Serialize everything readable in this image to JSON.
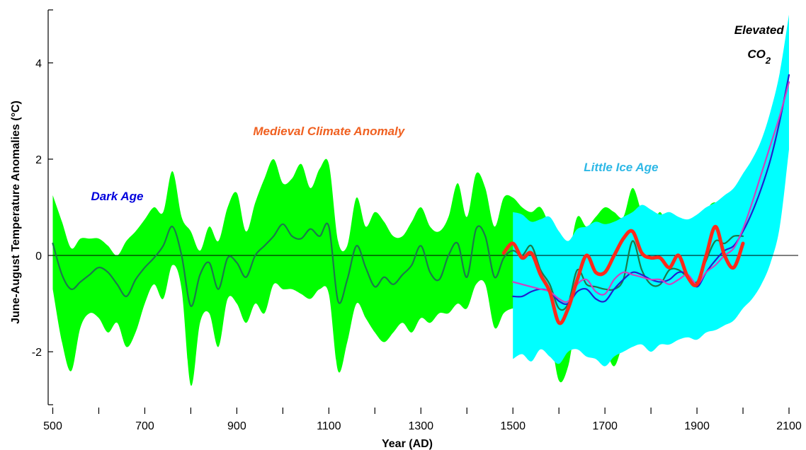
{
  "chart_data": {
    "type": "line",
    "xlabel": "Year (AD)",
    "ylabel": "June-August Temperature Anomalies (°C)",
    "xlim": [
      490,
      2120
    ],
    "ylim": [
      -3.1,
      5.1
    ],
    "x_ticks": [
      500,
      700,
      900,
      1100,
      1300,
      1500,
      1700,
      1900,
      2100
    ],
    "x_minor_ticks": [
      600,
      800,
      1000,
      1200,
      1400,
      1600,
      1800,
      2000
    ],
    "y_ticks": [
      -2,
      0,
      2,
      4
    ],
    "zero_line": true,
    "grid": false,
    "annotations": [
      {
        "text": "Dark Age",
        "x": 640,
        "y": 1.15,
        "color": "#0000dd"
      },
      {
        "text": "Medieval Climate Anomaly",
        "x": 1100,
        "y": 2.5,
        "color": "#f06020"
      },
      {
        "text": "Little Ice Age",
        "x": 1735,
        "y": 1.75,
        "color": "#2eb8e6"
      },
      {
        "text": "Elevated",
        "x": 2035,
        "y": 4.6,
        "color": "#000000"
      },
      {
        "text": "CO",
        "sub": "2",
        "x": 2035,
        "y": 4.1,
        "color": "#000000"
      }
    ],
    "series": [
      {
        "style": "band",
        "color": "#00ff00",
        "x": [
          500,
          520,
          540,
          560,
          580,
          600,
          620,
          640,
          660,
          680,
          700,
          720,
          740,
          760,
          780,
          800,
          820,
          840,
          860,
          880,
          900,
          920,
          940,
          960,
          980,
          1000,
          1020,
          1040,
          1060,
          1080,
          1100,
          1120,
          1140,
          1160,
          1180,
          1200,
          1220,
          1240,
          1260,
          1280,
          1300,
          1320,
          1340,
          1360,
          1380,
          1400,
          1420,
          1440,
          1460,
          1480,
          1500,
          1520,
          1540,
          1560,
          1580,
          1600,
          1620,
          1640,
          1660,
          1680,
          1700,
          1720,
          1740,
          1760,
          1780,
          1800,
          1820,
          1840,
          1860,
          1880,
          1900,
          1920,
          1940,
          1960,
          1980,
          2000
        ],
        "upper": [
          1.25,
          0.7,
          0.15,
          0.35,
          0.35,
          0.35,
          0.2,
          0.0,
          0.3,
          0.5,
          0.75,
          1.0,
          0.9,
          1.75,
          0.8,
          0.5,
          0.1,
          0.6,
          0.3,
          1.0,
          1.3,
          0.5,
          1.1,
          1.6,
          2.0,
          1.5,
          1.6,
          1.9,
          1.4,
          1.8,
          1.9,
          0.3,
          0.2,
          1.2,
          0.6,
          0.9,
          0.7,
          0.4,
          0.4,
          0.7,
          1.0,
          0.6,
          0.5,
          0.8,
          1.5,
          0.8,
          1.7,
          1.4,
          0.6,
          1.2,
          1.2,
          1.0,
          0.9,
          1.0,
          0.6,
          0.1,
          0.0,
          0.8,
          0.6,
          0.8,
          1.0,
          0.9,
          0.8,
          1.4,
          0.9,
          0.6,
          0.9,
          0.5,
          0.7,
          0.2,
          0.2,
          0.9,
          1.1,
          0.8,
          0.9,
          1.1
        ],
        "lower": [
          -0.7,
          -1.8,
          -2.4,
          -1.5,
          -1.2,
          -1.3,
          -1.6,
          -1.4,
          -1.9,
          -1.6,
          -1.0,
          -0.6,
          -0.9,
          -0.2,
          -0.7,
          -2.7,
          -1.4,
          -1.2,
          -1.9,
          -0.9,
          -1.0,
          -1.4,
          -1.0,
          -1.2,
          -0.6,
          -0.7,
          -0.7,
          -0.8,
          -0.9,
          -0.7,
          -0.8,
          -2.4,
          -1.8,
          -1.0,
          -1.3,
          -1.6,
          -1.8,
          -1.6,
          -1.4,
          -1.6,
          -1.3,
          -1.4,
          -1.2,
          -1.2,
          -1.0,
          -1.1,
          -0.6,
          -0.6,
          -1.5,
          -1.2,
          -1.1,
          -1.1,
          -0.9,
          -1.2,
          -1.6,
          -2.6,
          -2.3,
          -1.3,
          -1.2,
          -1.5,
          -1.9,
          -2.3,
          -1.8,
          -1.4,
          -1.7,
          -1.8,
          -1.8,
          -1.3,
          -1.6,
          -1.4,
          -1.3,
          -1.0,
          -0.5,
          -0.4,
          -0.4,
          -0.3
        ]
      },
      {
        "style": "line",
        "color": "#1a7a4a",
        "x": [
          500,
          520,
          540,
          560,
          580,
          600,
          620,
          640,
          660,
          680,
          700,
          720,
          740,
          760,
          780,
          800,
          820,
          840,
          860,
          880,
          900,
          920,
          940,
          960,
          980,
          1000,
          1020,
          1040,
          1060,
          1080,
          1100,
          1120,
          1140,
          1160,
          1180,
          1200,
          1220,
          1240,
          1260,
          1280,
          1300,
          1320,
          1340,
          1360,
          1380,
          1400,
          1420,
          1440,
          1460,
          1480,
          1500,
          1520,
          1540,
          1560,
          1580,
          1600,
          1620,
          1640,
          1660,
          1680,
          1700,
          1720,
          1740,
          1760,
          1780,
          1800,
          1820,
          1840,
          1860,
          1880,
          1900,
          1920,
          1940,
          1960,
          1980,
          2000
        ],
        "values": [
          0.25,
          -0.4,
          -0.7,
          -0.55,
          -0.4,
          -0.25,
          -0.35,
          -0.6,
          -0.85,
          -0.5,
          -0.25,
          -0.05,
          0.2,
          0.6,
          0.0,
          -1.05,
          -0.4,
          -0.15,
          -0.7,
          -0.05,
          -0.15,
          -0.45,
          0.0,
          0.2,
          0.4,
          0.65,
          0.4,
          0.35,
          0.55,
          0.4,
          0.6,
          -0.95,
          -0.5,
          0.2,
          -0.25,
          -0.65,
          -0.45,
          -0.6,
          -0.4,
          -0.2,
          0.2,
          -0.35,
          -0.5,
          0.0,
          0.25,
          -0.45,
          0.55,
          0.4,
          -0.45,
          -0.05,
          0.1,
          0.0,
          0.2,
          -0.3,
          -0.6,
          -1.1,
          -1.0,
          -0.3,
          -0.6,
          -0.65,
          -0.7,
          -0.7,
          -0.5,
          0.3,
          -0.3,
          -0.6,
          -0.6,
          -0.3,
          -0.3,
          -0.45,
          -0.55,
          -0.1,
          0.3,
          0.25,
          0.4,
          0.4
        ]
      },
      {
        "style": "band",
        "color": "#00ffff",
        "x": [
          1500,
          1520,
          1540,
          1560,
          1580,
          1600,
          1620,
          1640,
          1660,
          1680,
          1700,
          1720,
          1740,
          1760,
          1780,
          1800,
          1820,
          1840,
          1860,
          1880,
          1900,
          1920,
          1940,
          1960,
          1980,
          2000,
          2020,
          2040,
          2060,
          2080,
          2100
        ],
        "upper": [
          0.9,
          0.85,
          0.7,
          0.75,
          0.8,
          0.5,
          0.3,
          0.55,
          0.6,
          0.7,
          0.65,
          0.7,
          0.8,
          0.9,
          1.05,
          0.95,
          0.85,
          0.9,
          0.8,
          0.75,
          0.85,
          1.0,
          1.1,
          1.25,
          1.4,
          1.7,
          2.0,
          2.4,
          3.0,
          3.8,
          5.0
        ],
        "lower": [
          -2.15,
          -2.05,
          -2.2,
          -1.95,
          -2.1,
          -2.25,
          -2.0,
          -1.95,
          -2.1,
          -2.15,
          -2.3,
          -2.1,
          -2.0,
          -1.9,
          -1.85,
          -2.0,
          -1.85,
          -1.85,
          -1.75,
          -1.7,
          -1.75,
          -1.6,
          -1.55,
          -1.45,
          -1.35,
          -1.1,
          -0.9,
          -0.6,
          -0.15,
          0.6,
          2.2
        ]
      },
      {
        "style": "line",
        "color": "#2020d0",
        "x": [
          1500,
          1520,
          1540,
          1560,
          1580,
          1600,
          1620,
          1640,
          1660,
          1680,
          1700,
          1720,
          1740,
          1760,
          1780,
          1800,
          1820,
          1840,
          1860,
          1880,
          1900,
          1920,
          1940,
          1960,
          1980,
          2000,
          2020,
          2040,
          2060,
          2080,
          2100
        ],
        "values": [
          -0.85,
          -0.85,
          -0.75,
          -0.7,
          -0.75,
          -0.95,
          -1.0,
          -0.75,
          -0.7,
          -0.9,
          -0.95,
          -0.7,
          -0.5,
          -0.35,
          -0.4,
          -0.5,
          -0.55,
          -0.5,
          -0.35,
          -0.4,
          -0.65,
          -0.35,
          -0.1,
          0.1,
          0.2,
          0.5,
          0.9,
          1.4,
          2.0,
          2.8,
          3.75
        ]
      },
      {
        "style": "line",
        "color": "#d040c0",
        "x": [
          1500,
          1520,
          1540,
          1560,
          1580,
          1600,
          1620,
          1640,
          1660,
          1680,
          1700,
          1720,
          1740,
          1760,
          1780,
          1800,
          1820,
          1840,
          1860,
          1880,
          1900,
          1920,
          1940,
          1960,
          1980,
          2000,
          2020,
          2040,
          2060,
          2080,
          2100
        ],
        "values": [
          -0.55,
          -0.6,
          -0.65,
          -0.7,
          -0.75,
          -0.9,
          -0.95,
          -0.6,
          -0.5,
          -0.75,
          -0.8,
          -0.5,
          -0.35,
          -0.4,
          -0.45,
          -0.5,
          -0.5,
          -0.6,
          -0.5,
          -0.4,
          -0.6,
          -0.35,
          -0.2,
          0.0,
          0.15,
          0.55,
          1.1,
          1.7,
          2.3,
          2.9,
          3.6
        ]
      },
      {
        "style": "thick-line",
        "color": "#ff2a1a",
        "x": [
          1480,
          1500,
          1520,
          1540,
          1560,
          1580,
          1600,
          1620,
          1640,
          1660,
          1680,
          1700,
          1720,
          1740,
          1760,
          1780,
          1800,
          1820,
          1840,
          1860,
          1880,
          1900,
          1920,
          1940,
          1960,
          1980,
          2000
        ],
        "values": [
          0.05,
          0.25,
          -0.05,
          0.05,
          -0.4,
          -0.75,
          -1.4,
          -1.1,
          -0.5,
          0.0,
          -0.35,
          -0.35,
          0.0,
          0.35,
          0.5,
          0.05,
          -0.05,
          -0.05,
          -0.25,
          0.0,
          -0.45,
          -0.6,
          0.0,
          0.6,
          0.0,
          -0.25,
          0.25
        ]
      }
    ]
  }
}
